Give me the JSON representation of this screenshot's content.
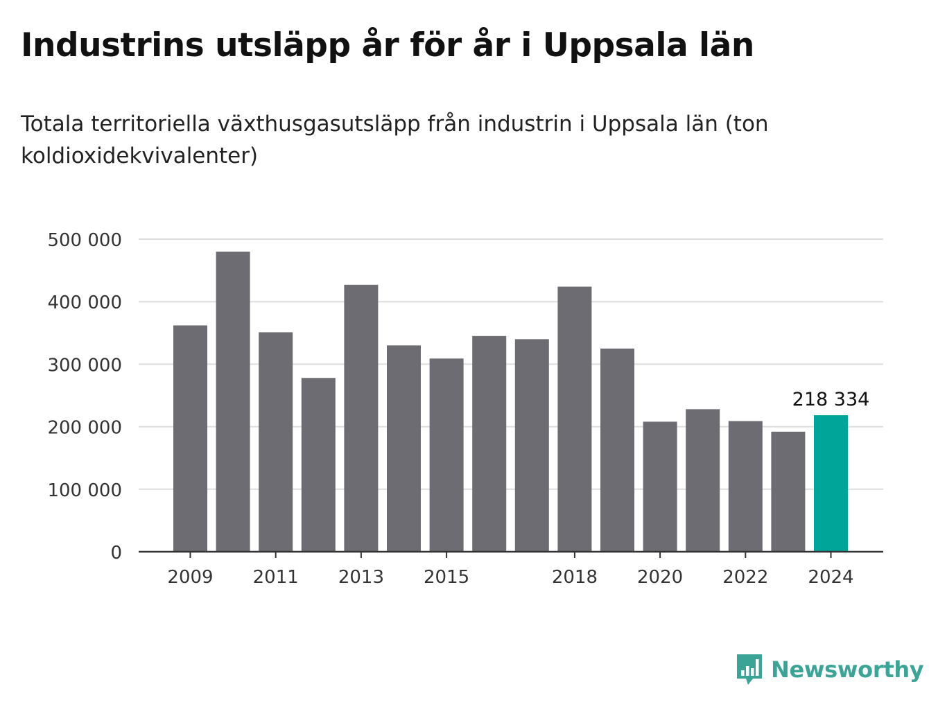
{
  "header": {
    "title": "Industrins utsläpp år för år i Uppsala län",
    "subtitle": "Totala territoriella växthusgasutsläpp från industrin i Uppsala län (ton koldioxidekvivalenter)"
  },
  "chart_data": {
    "type": "bar",
    "title": "Industrins utsläpp år för år i Uppsala län",
    "subtitle": "Totala territoriella växthusgasutsläpp från industrin i Uppsala län (ton koldioxidekvivalenter)",
    "categories": [
      "2009",
      "2010",
      "2011",
      "2012",
      "2013",
      "2014",
      "2015",
      "2016",
      "2017",
      "2018",
      "2019",
      "2020",
      "2021",
      "2022",
      "2023",
      "2024"
    ],
    "values": [
      362000,
      480000,
      351000,
      278000,
      427000,
      330000,
      309000,
      345000,
      340000,
      424000,
      325000,
      208000,
      228000,
      209000,
      192000,
      218334
    ],
    "x_tick_labels": [
      "2009",
      "2011",
      "2013",
      "2015",
      "2018",
      "2020",
      "2022",
      "2024"
    ],
    "y_ticks": [
      0,
      100000,
      200000,
      300000,
      400000,
      500000
    ],
    "y_tick_labels": [
      "0",
      "100 000",
      "200 000",
      "300 000",
      "400 000",
      "500 000"
    ],
    "ylim": [
      0,
      500000
    ],
    "grid": true,
    "highlight": {
      "category": "2024",
      "label": "218 334"
    },
    "colors": {
      "bar": "#6d6c72",
      "highlight": "#00a59a",
      "grid": "#dddddd",
      "axis": "#333333"
    }
  },
  "branding": {
    "logo_text": "Newsworthy",
    "logo_icon": "bar-chart-speech-bubble-icon",
    "logo_color": "#3aa597"
  }
}
